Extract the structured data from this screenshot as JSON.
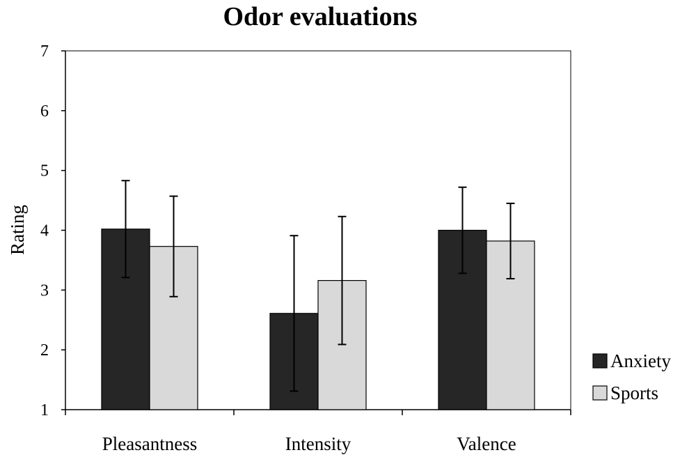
{
  "chart_data": {
    "type": "bar",
    "title": "Odor evaluations",
    "xlabel": "",
    "ylabel": "Rating",
    "ylim": [
      1,
      7
    ],
    "yticks": [
      1,
      2,
      3,
      4,
      5,
      6,
      7
    ],
    "categories": [
      "Pleasantness",
      "Intensity",
      "Valence"
    ],
    "series": [
      {
        "name": "Anxiety",
        "color": "#262626",
        "values": [
          4.02,
          2.61,
          4.0
        ],
        "error": [
          0.81,
          1.3,
          0.72
        ]
      },
      {
        "name": "Sports",
        "color": "#d9d9d9",
        "values": [
          3.73,
          3.16,
          3.82
        ],
        "error": [
          0.84,
          1.07,
          0.63
        ]
      }
    ],
    "legend_position": "bottom-right",
    "grid": false
  }
}
